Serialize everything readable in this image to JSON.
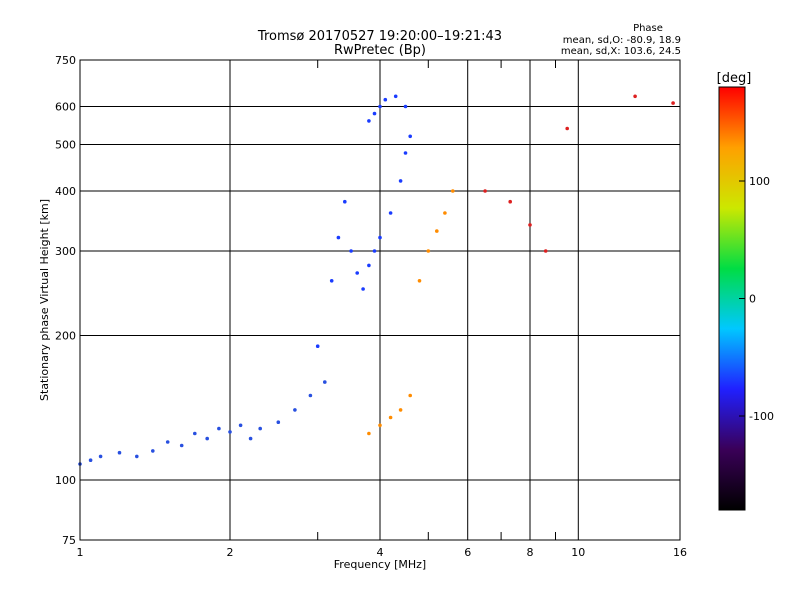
{
  "chart_data": {
    "type": "scatter",
    "title": "Tromsø 20170527 19:20:00–19:21:43",
    "subtitle": "RwPretec (Bp)",
    "xlabel": "Frequency [MHz]",
    "ylabel": "Stationary phase Virtual Height [km]",
    "x_scale": "log",
    "y_scale": "log",
    "xlim": [
      1,
      16
    ],
    "ylim": [
      75,
      750
    ],
    "x_ticks": [
      1,
      2,
      4,
      6,
      8,
      10,
      16
    ],
    "y_ticks": [
      75,
      100,
      200,
      300,
      400,
      500,
      600,
      750
    ],
    "x_minor_ticks": [
      3,
      5,
      7,
      9
    ],
    "grid": true,
    "stats_title": "Phase",
    "stats_lines": [
      "mean, sd,O: -80.9, 18.9",
      "mean, sd,X: 103.6, 24.5"
    ],
    "colorbar": {
      "label": "[deg]",
      "range": [
        -180,
        180
      ],
      "ticks": [
        100,
        0,
        -100
      ],
      "colors": [
        "#000000",
        "#3a0058",
        "#2020ff",
        "#00c8ff",
        "#00dd44",
        "#cce800",
        "#ffa000",
        "#ff0000"
      ]
    },
    "series": [
      {
        "trace": "low-band",
        "color": "#2850e0",
        "points": [
          [
            1.0,
            108
          ],
          [
            1.05,
            110
          ],
          [
            1.1,
            112
          ],
          [
            1.2,
            114
          ],
          [
            1.3,
            112
          ],
          [
            1.4,
            115
          ],
          [
            1.5,
            120
          ],
          [
            1.6,
            118
          ],
          [
            1.7,
            125
          ],
          [
            1.8,
            122
          ],
          [
            1.9,
            128
          ],
          [
            2.0,
            126
          ],
          [
            2.1,
            130
          ],
          [
            2.2,
            122
          ],
          [
            2.3,
            128
          ],
          [
            2.5,
            132
          ],
          [
            2.7,
            140
          ],
          [
            2.9,
            150
          ],
          [
            3.1,
            160
          ]
        ]
      },
      {
        "trace": "o-trace-mid",
        "color": "#1a3cff",
        "points": [
          [
            3.0,
            190
          ],
          [
            3.2,
            260
          ],
          [
            3.3,
            320
          ],
          [
            3.4,
            380
          ],
          [
            3.5,
            300
          ],
          [
            3.6,
            270
          ],
          [
            3.7,
            250
          ],
          [
            3.8,
            280
          ],
          [
            3.9,
            300
          ],
          [
            4.0,
            320
          ],
          [
            4.2,
            360
          ],
          [
            4.4,
            420
          ],
          [
            4.5,
            480
          ],
          [
            4.6,
            520
          ]
        ]
      },
      {
        "trace": "o-trace-top",
        "color": "#1a3cff",
        "points": [
          [
            3.8,
            560
          ],
          [
            3.9,
            580
          ],
          [
            4.0,
            600
          ],
          [
            4.1,
            620
          ],
          [
            4.3,
            630
          ],
          [
            4.5,
            600
          ]
        ]
      },
      {
        "trace": "x-trace",
        "color": "#ff8c00",
        "points": [
          [
            3.8,
            125
          ],
          [
            4.0,
            130
          ],
          [
            4.2,
            135
          ],
          [
            4.4,
            140
          ],
          [
            4.6,
            150
          ],
          [
            4.8,
            260
          ],
          [
            5.0,
            300
          ],
          [
            5.2,
            330
          ],
          [
            5.4,
            360
          ],
          [
            5.6,
            400
          ]
        ]
      },
      {
        "trace": "sparse-high",
        "color": "#dd2020",
        "points": [
          [
            6.5,
            400
          ],
          [
            7.3,
            380
          ],
          [
            8.0,
            340
          ],
          [
            8.6,
            300
          ],
          [
            9.5,
            540
          ],
          [
            13.0,
            630
          ],
          [
            15.5,
            610
          ]
        ]
      }
    ]
  }
}
